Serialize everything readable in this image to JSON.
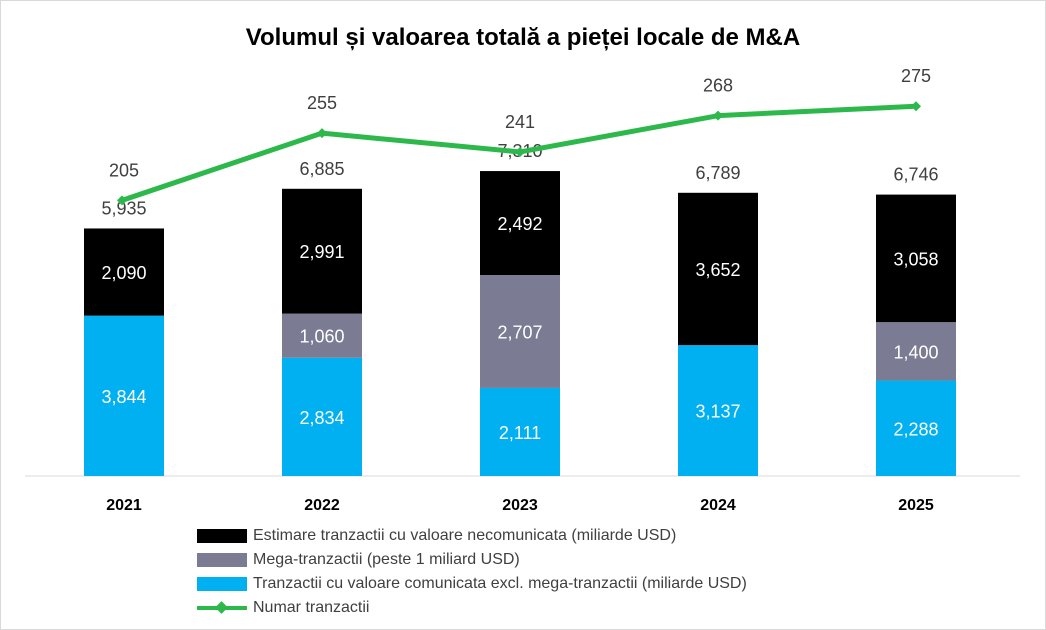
{
  "chart_data": {
    "type": "bar",
    "stacked": true,
    "title": "Volumul și valoarea totală a pieței locale de M&A",
    "categories": [
      "2021",
      "2022",
      "2023",
      "2024",
      "2025"
    ],
    "series": [
      {
        "name": "Tranzactii cu valoare comunicata excl. mega-tranzactii (miliarde USD)",
        "color": "#00b0f0",
        "label_color": "#ffffff",
        "values": [
          3844,
          2834,
          2111,
          3137,
          2288
        ],
        "labels": [
          "3,844",
          "2,834",
          "2,111",
          "3,137",
          "2,288"
        ]
      },
      {
        "name": "Mega-tranzactii (peste 1 miliard USD)",
        "color": "#7b7b93",
        "label_color": "#ffffff",
        "values": [
          0,
          1060,
          2707,
          0,
          1400
        ],
        "labels": [
          "",
          "1,060",
          "2,707",
          "",
          "1,400"
        ]
      },
      {
        "name": "Estimare tranzactii cu valoare necomunicata (miliarde USD)",
        "color": "#000000",
        "label_color": "#ffffff",
        "values": [
          2090,
          2991,
          2492,
          3652,
          3058
        ],
        "labels": [
          "2,090",
          "2,991",
          "2,492",
          "3,652",
          "3,058"
        ]
      }
    ],
    "totals": [
      5935,
      6885,
      7310,
      6789,
      6746
    ],
    "total_labels": [
      "5,935",
      "6,885",
      "7,310",
      "6,789",
      "6,746"
    ],
    "line_series": {
      "name": "Numar tranzactii",
      "color": "#2db84b",
      "values": [
        205,
        255,
        241,
        268,
        275
      ],
      "labels": [
        "205",
        "255",
        "241",
        "268",
        "275"
      ]
    },
    "bar_ylim": [
      0,
      10000
    ],
    "line_ylim": [
      0,
      300
    ],
    "legend_position": "bottom",
    "legend_order": [
      "Estimare tranzactii cu valoare necomunicata (miliarde USD)",
      "Mega-tranzactii (peste 1 miliard USD)",
      "Tranzactii cu valoare comunicata excl. mega-tranzactii (miliarde USD)",
      "Numar tranzactii"
    ],
    "grid": false
  }
}
